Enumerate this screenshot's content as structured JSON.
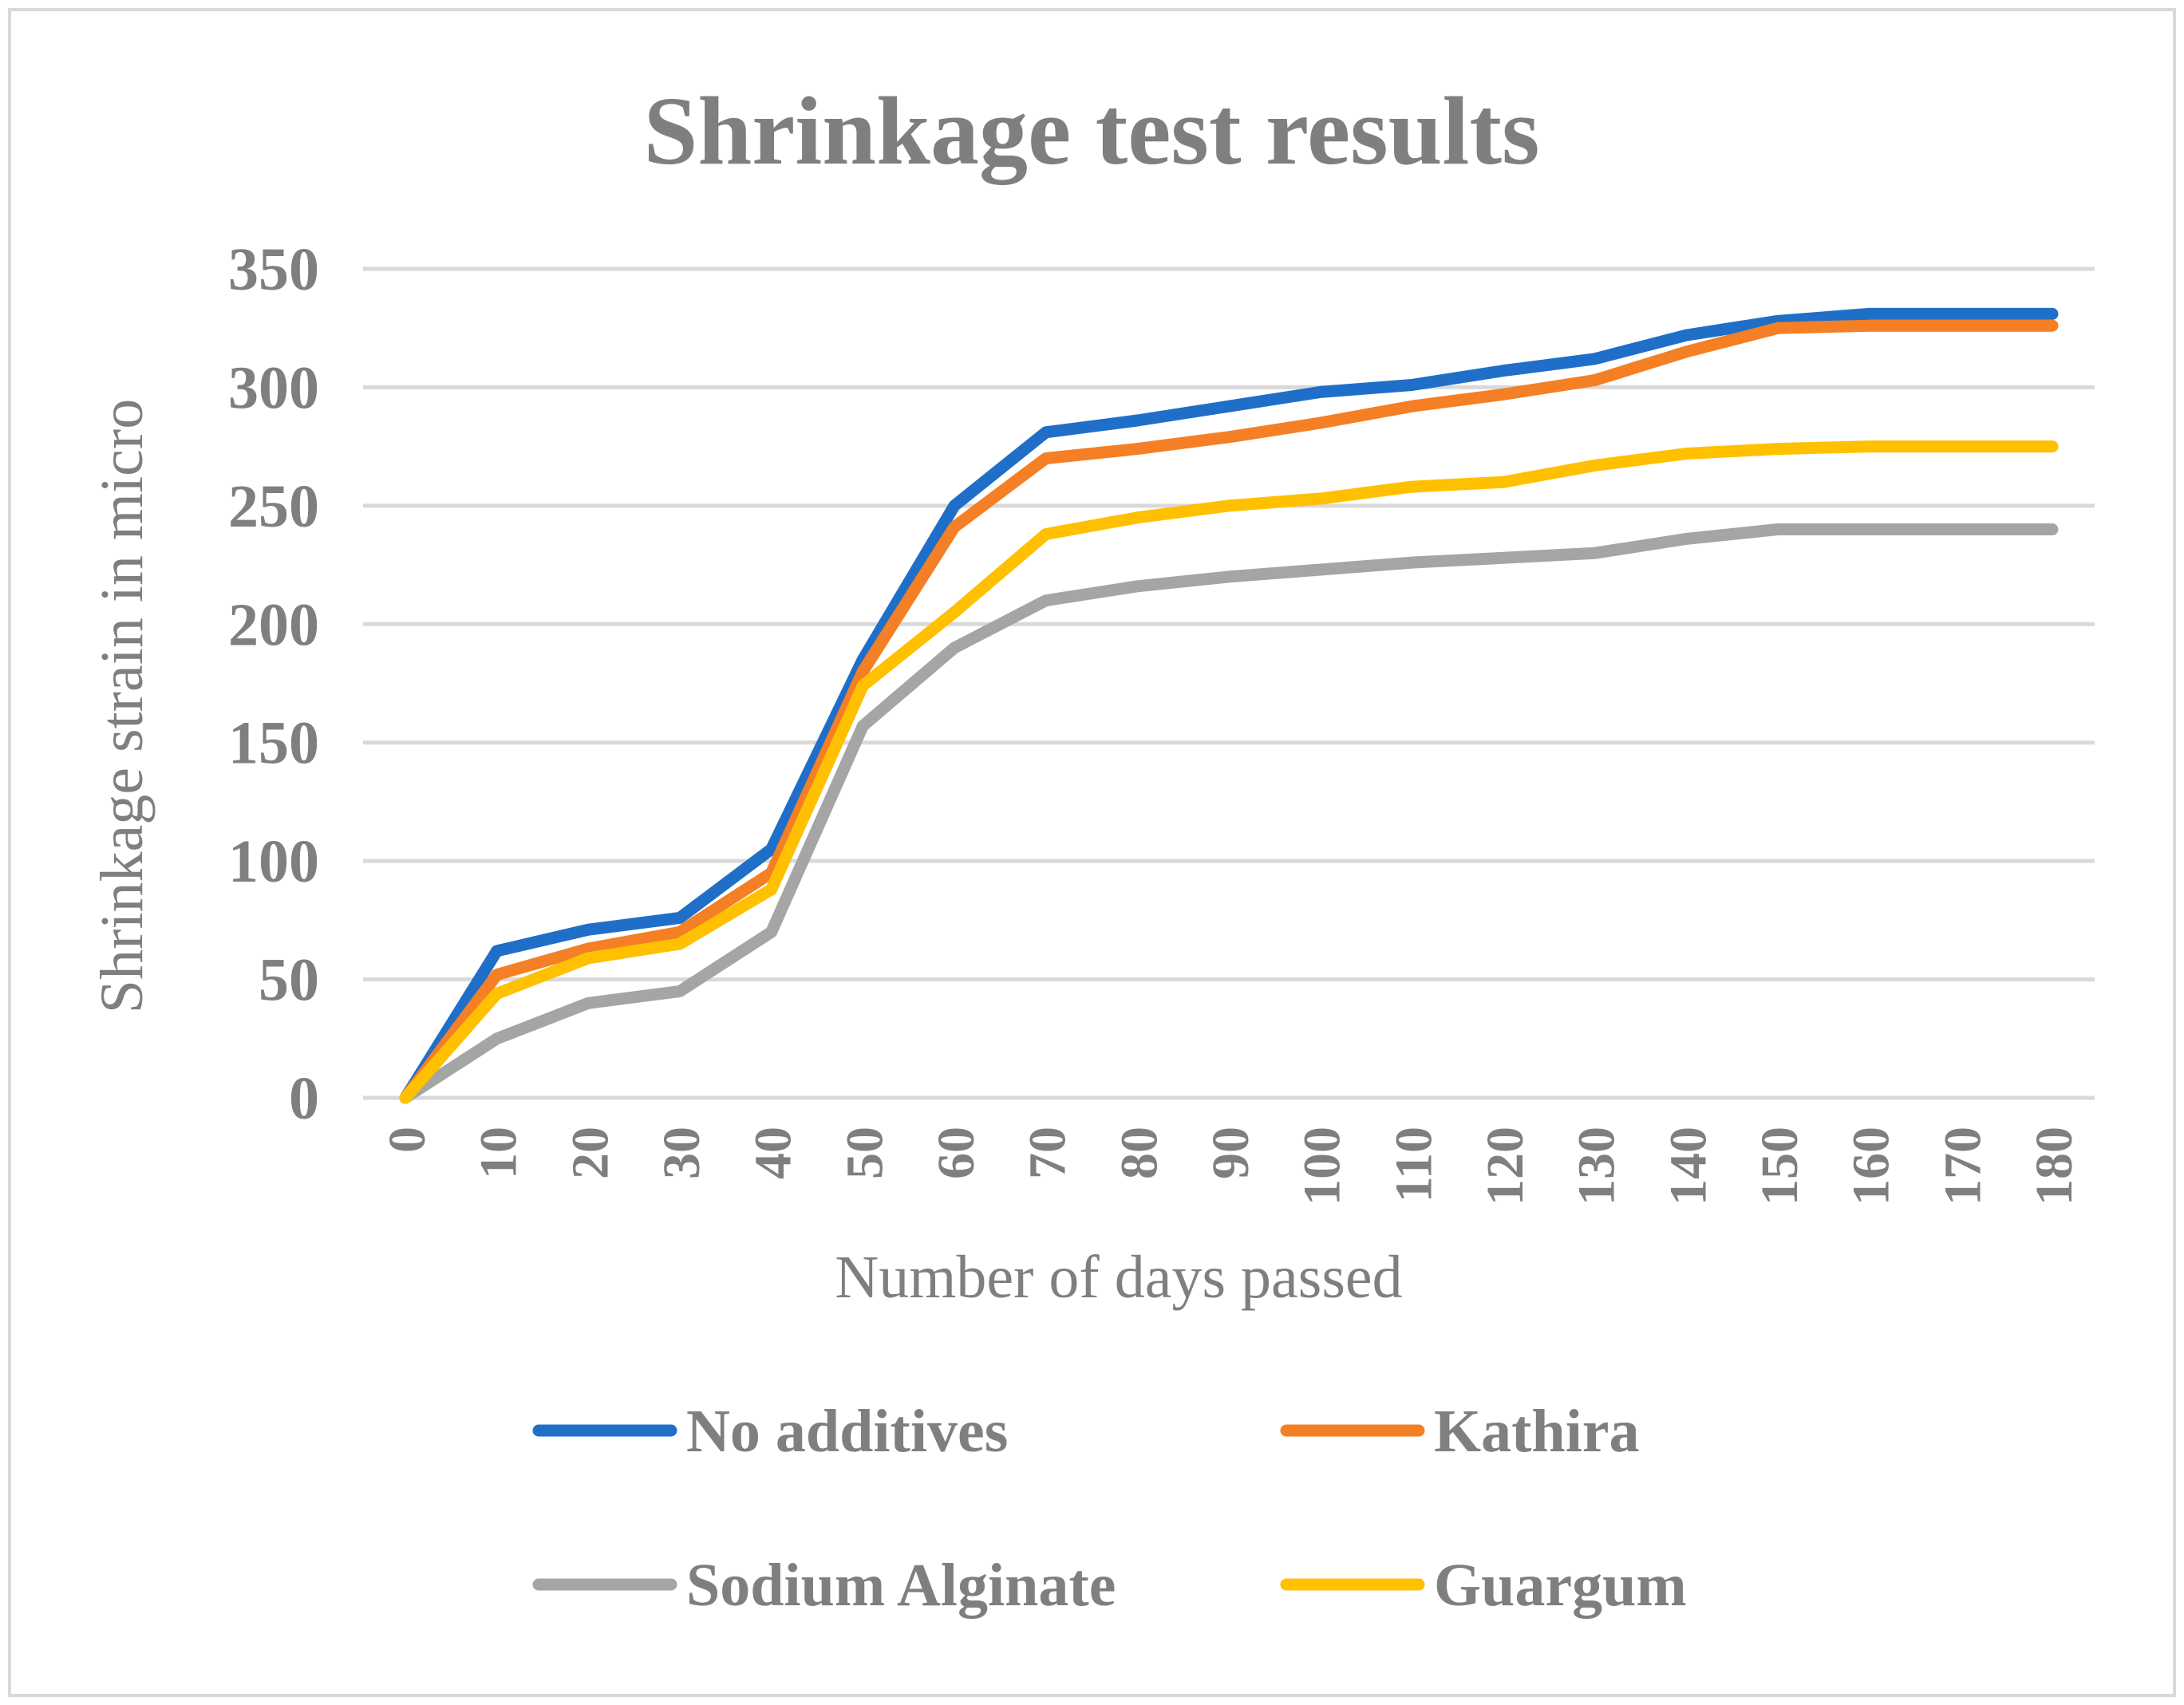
{
  "chart_data": {
    "type": "line",
    "title": "Shrinkage test results",
    "xlabel": "Number of days passed",
    "ylabel": "Shrinkage strain in micro",
    "x": [
      0,
      10,
      20,
      30,
      40,
      50,
      60,
      70,
      80,
      90,
      100,
      110,
      120,
      130,
      140,
      150,
      160,
      170,
      180
    ],
    "x_tick_labels": [
      "0",
      "10",
      "20",
      "30",
      "40",
      "50",
      "60",
      "70",
      "80",
      "90",
      "100",
      "110",
      "120",
      "130",
      "140",
      "150",
      "160",
      "170",
      "180"
    ],
    "ylim": [
      0,
      350
    ],
    "y_ticks": [
      0,
      50,
      100,
      150,
      200,
      250,
      300,
      350
    ],
    "y_tick_labels": [
      "0",
      "50",
      "100",
      "150",
      "200",
      "250",
      "300",
      "350"
    ],
    "grid": true,
    "legend_position": "bottom",
    "series": [
      {
        "name": "No additives",
        "color": "#1f6fc9",
        "values": [
          0,
          62,
          71,
          76,
          105,
          185,
          250,
          281,
          286,
          292,
          298,
          301,
          307,
          312,
          322,
          328,
          331,
          331,
          331
        ]
      },
      {
        "name": "Kathira",
        "color": "#f47f24",
        "values": [
          0,
          52,
          63,
          70,
          95,
          180,
          241,
          270,
          274,
          279,
          285,
          292,
          297,
          303,
          315,
          325,
          326,
          326,
          326
        ]
      },
      {
        "name": "Sodium Alginate",
        "color": "#a5a5a5",
        "values": [
          0,
          25,
          40,
          45,
          70,
          157,
          190,
          210,
          216,
          220,
          223,
          226,
          228,
          230,
          236,
          240,
          240,
          240,
          240
        ]
      },
      {
        "name": "Guargum",
        "color": "#ffc000",
        "values": [
          0,
          44,
          59,
          65,
          88,
          174,
          205,
          238,
          245,
          250,
          253,
          258,
          260,
          267,
          272,
          274,
          275,
          275,
          275
        ]
      }
    ]
  }
}
